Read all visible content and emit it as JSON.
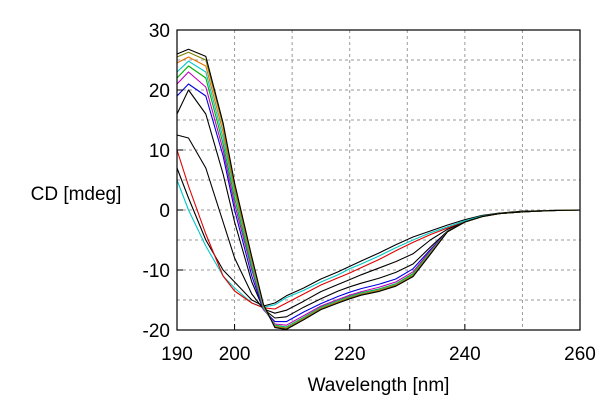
{
  "chart_data": {
    "type": "line",
    "xlabel": "Wavelength [nm]",
    "ylabel": "CD [mdeg]",
    "xlim": [
      190,
      260
    ],
    "ylim": [
      -20,
      30
    ],
    "x_ticks": [
      190,
      200,
      220,
      240,
      260
    ],
    "x_tick_labels": [
      "190",
      "200",
      "220",
      "240",
      "260"
    ],
    "y_ticks": [
      -20,
      -10,
      0,
      10,
      20,
      30
    ],
    "y_tick_labels": [
      "-20",
      "-10",
      "0",
      "10",
      "20",
      "30"
    ],
    "grid": true,
    "x_gridlines": [
      200,
      210,
      220,
      230,
      240,
      250
    ],
    "y_gridlines": [
      -15,
      -10,
      -5,
      0,
      5,
      10,
      15,
      20,
      25
    ],
    "series": [
      {
        "color": "#000000",
        "x": [
          190,
          192,
          195,
          198,
          200,
          203,
          205,
          207,
          209,
          212,
          215,
          218,
          220,
          222,
          225,
          228,
          231,
          234,
          237,
          240,
          243,
          246,
          250,
          255,
          260
        ],
        "y": [
          7,
          2,
          -5,
          -10,
          -12,
          -15,
          -16,
          -15.5,
          -14.3,
          -13,
          -11.5,
          -10.3,
          -9.4,
          -8.5,
          -7.2,
          -5.8,
          -4.5,
          -3.5,
          -2.5,
          -1.6,
          -0.9,
          -0.5,
          -0.2,
          -0.1,
          0
        ]
      },
      {
        "color": "#00c8c8",
        "x": [
          190,
          192,
          195,
          198,
          200,
          203,
          205,
          207,
          209,
          212,
          215,
          218,
          220,
          222,
          225,
          228,
          231,
          234,
          237,
          240,
          243,
          246,
          250,
          255,
          260
        ],
        "y": [
          5,
          0,
          -6,
          -11,
          -13,
          -15.5,
          -16.2,
          -15.8,
          -14.6,
          -13.4,
          -12,
          -10.8,
          -9.8,
          -9,
          -7.7,
          -6.3,
          -5,
          -3.8,
          -2.8,
          -1.8,
          -1,
          -0.6,
          -0.3,
          -0.1,
          0
        ]
      },
      {
        "color": "#e00000",
        "x": [
          190,
          192,
          195,
          198,
          200,
          203,
          205,
          207,
          209,
          212,
          215,
          218,
          220,
          222,
          225,
          228,
          231,
          234,
          237,
          240,
          243,
          246,
          250,
          255,
          260
        ],
        "y": [
          10,
          4,
          -4,
          -11,
          -13.5,
          -15.5,
          -16.3,
          -16.5,
          -15.5,
          -14,
          -12.5,
          -11.3,
          -10.5,
          -9.6,
          -8.3,
          -6.8,
          -5.4,
          -4.1,
          -3,
          -2,
          -1.1,
          -0.6,
          -0.3,
          -0.1,
          0
        ]
      },
      {
        "color": "#000000",
        "x": [
          190,
          192,
          195,
          198,
          200,
          203,
          205,
          207,
          209,
          212,
          215,
          218,
          220,
          222,
          225,
          228,
          231,
          234,
          237,
          240,
          243,
          246,
          250,
          255,
          260
        ],
        "y": [
          12.5,
          12,
          7,
          -2,
          -8,
          -14,
          -16.5,
          -17.2,
          -16.7,
          -15.2,
          -13.6,
          -12.4,
          -11.6,
          -10.8,
          -9.7,
          -8.6,
          -7.3,
          -5,
          -3.2,
          -2,
          -1.1,
          -0.6,
          -0.3,
          -0.1,
          0
        ]
      },
      {
        "color": "#000000",
        "x": [
          190,
          192,
          195,
          198,
          200,
          203,
          205,
          207,
          209,
          212,
          215,
          218,
          220,
          222,
          225,
          228,
          231,
          234,
          237,
          240,
          243,
          246,
          250,
          255,
          260
        ],
        "y": [
          16,
          20,
          16,
          6,
          -2,
          -12,
          -16.5,
          -18,
          -17.8,
          -16.2,
          -14.8,
          -13.5,
          -12.8,
          -12.2,
          -11.4,
          -10.4,
          -9,
          -6.2,
          -3.5,
          -2,
          -1.1,
          -0.6,
          -0.3,
          -0.1,
          0
        ]
      },
      {
        "color": "#0000e0",
        "x": [
          190,
          192,
          195,
          198,
          200,
          203,
          205,
          207,
          209,
          212,
          215,
          218,
          220,
          222,
          225,
          228,
          231,
          234,
          237,
          240,
          243,
          246,
          250,
          255,
          260
        ],
        "y": [
          19,
          21,
          19,
          9,
          0,
          -11,
          -16.6,
          -18.6,
          -18.6,
          -17,
          -15.6,
          -14.4,
          -13.7,
          -13.1,
          -12.4,
          -11.5,
          -9.8,
          -6.6,
          -3.6,
          -2,
          -1.1,
          -0.6,
          -0.3,
          -0.1,
          0
        ]
      },
      {
        "color": "#c000c0",
        "x": [
          190,
          192,
          195,
          198,
          200,
          203,
          205,
          207,
          209,
          212,
          215,
          218,
          220,
          222,
          225,
          228,
          231,
          234,
          237,
          240,
          243,
          246,
          250,
          255,
          260
        ],
        "y": [
          21,
          23,
          20.5,
          10,
          1,
          -10,
          -16.5,
          -19,
          -19.2,
          -17.6,
          -16,
          -14.9,
          -14.2,
          -13.6,
          -12.9,
          -12,
          -10.3,
          -6.8,
          -3.6,
          -2,
          -1.1,
          -0.6,
          -0.3,
          -0.1,
          0
        ]
      },
      {
        "color": "#00b000",
        "x": [
          190,
          192,
          195,
          198,
          200,
          203,
          205,
          207,
          209,
          212,
          215,
          218,
          220,
          222,
          225,
          228,
          231,
          234,
          237,
          240,
          243,
          246,
          250,
          255,
          260
        ],
        "y": [
          22,
          24,
          22,
          11,
          2,
          -9.5,
          -16.3,
          -19.2,
          -19.5,
          -17.9,
          -16.2,
          -15.1,
          -14.4,
          -13.8,
          -13.2,
          -12.3,
          -10.6,
          -7,
          -3.6,
          -2,
          -1.1,
          -0.6,
          -0.3,
          -0.1,
          0
        ]
      },
      {
        "color": "#00c8c8",
        "x": [
          190,
          192,
          195,
          198,
          200,
          203,
          205,
          207,
          209,
          212,
          215,
          218,
          220,
          222,
          225,
          228,
          231,
          234,
          237,
          240,
          243,
          246,
          250,
          255,
          260
        ],
        "y": [
          23,
          24.8,
          23,
          12,
          3,
          -9,
          -16.2,
          -19.3,
          -19.6,
          -18,
          -16.3,
          -15.2,
          -14.5,
          -13.9,
          -13.3,
          -12.4,
          -10.8,
          -7.1,
          -3.6,
          -2,
          -1.1,
          -0.6,
          -0.3,
          -0.1,
          0
        ]
      },
      {
        "color": "#e07000",
        "x": [
          190,
          192,
          195,
          198,
          200,
          203,
          205,
          207,
          209,
          212,
          215,
          218,
          220,
          222,
          225,
          228,
          231,
          234,
          237,
          240,
          243,
          246,
          250,
          255,
          260
        ],
        "y": [
          24.5,
          25.5,
          24,
          13,
          3.5,
          -8.5,
          -16,
          -19.4,
          -19.7,
          -18.1,
          -16.4,
          -15.3,
          -14.6,
          -14,
          -13.4,
          -12.5,
          -10.9,
          -7.2,
          -3.6,
          -2,
          -1.1,
          -0.6,
          -0.3,
          -0.1,
          0
        ]
      },
      {
        "color": "#808000",
        "x": [
          190,
          192,
          195,
          198,
          200,
          203,
          205,
          207,
          209,
          212,
          215,
          218,
          220,
          222,
          225,
          228,
          231,
          234,
          237,
          240,
          243,
          246,
          250,
          255,
          260
        ],
        "y": [
          25.5,
          26.3,
          25,
          14,
          4,
          -8,
          -15.8,
          -19.5,
          -19.8,
          -18.2,
          -16.5,
          -15.4,
          -14.7,
          -14.1,
          -13.5,
          -12.6,
          -11,
          -7.3,
          -3.6,
          -2,
          -1.1,
          -0.6,
          -0.3,
          -0.1,
          0
        ]
      },
      {
        "color": "#000000",
        "x": [
          190,
          192,
          195,
          198,
          200,
          203,
          205,
          207,
          209,
          212,
          215,
          218,
          220,
          222,
          225,
          228,
          231,
          234,
          237,
          240,
          243,
          246,
          250,
          255,
          260
        ],
        "y": [
          26,
          26.8,
          25.6,
          14.5,
          4.5,
          -7.8,
          -15.7,
          -19.6,
          -19.9,
          -18.3,
          -16.6,
          -15.5,
          -14.8,
          -14.2,
          -13.6,
          -12.7,
          -11.1,
          -7.4,
          -3.6,
          -2,
          -1.1,
          -0.6,
          -0.3,
          -0.1,
          0
        ]
      }
    ]
  }
}
